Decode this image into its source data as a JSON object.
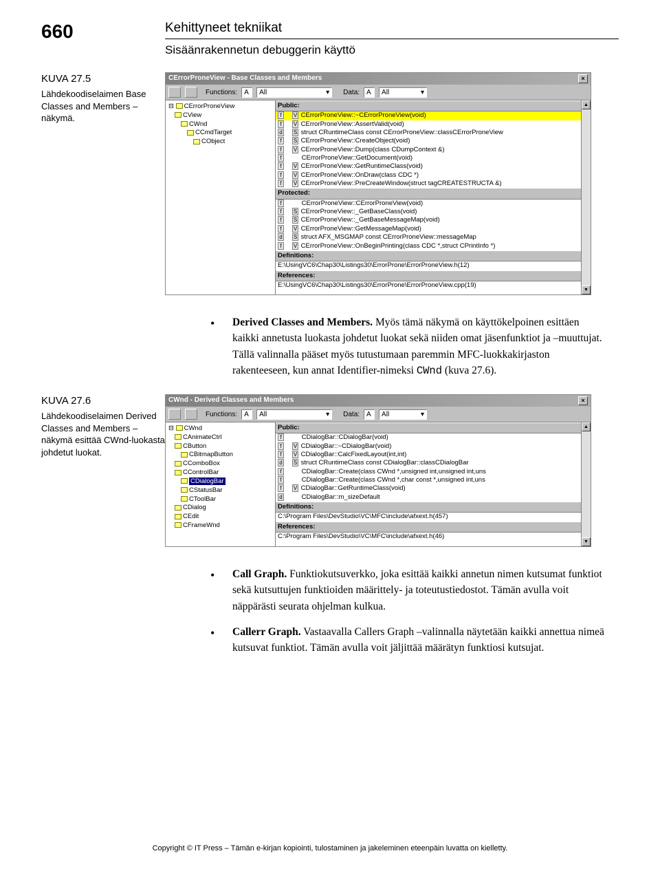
{
  "page_number": "660",
  "header": {
    "title1": "Kehittyneet tekniikat",
    "title2": "Sisäänrakennetun debuggerin käyttö"
  },
  "caption1": {
    "label": "KUVA 27.5",
    "text": "Lähdekoodiselaimen Base Classes and Members –näkymä."
  },
  "caption2": {
    "label": "KUVA 27.6",
    "text": "Lähdekoodiselaimen Derived Classes and Members –näkymä esittää CWnd-luokasta johdetut luokat."
  },
  "win1": {
    "title": "CErrorProneView - Base Classes and Members",
    "toolbar": {
      "functions_label": "Functions:",
      "functions_scope": "A",
      "functions_val": "All",
      "data_label": "Data:",
      "data_scope": "A",
      "data_val": "All"
    },
    "tree": [
      "CErrorProneView",
      " CView",
      "  CWnd",
      "   CCmdTarget",
      "    CObject"
    ],
    "sections": [
      {
        "h": "Public:",
        "rows": [
          {
            "b": "f V",
            "t": "CErrorProneView::~CErrorProneView(void)",
            "sel": true
          },
          {
            "b": "f V",
            "t": "CErrorProneView::AssertValid(void)"
          },
          {
            "b": "d S",
            "t": "struct CRuntimeClass const CErrorProneView::classCErrorProneView"
          },
          {
            "b": "f S",
            "t": "CErrorProneView::CreateObject(void)"
          },
          {
            "b": "f V",
            "t": "CErrorProneView::Dump(class CDumpContext &)"
          },
          {
            "b": "f  ",
            "t": "CErrorProneView::GetDocument(void)"
          },
          {
            "b": "f V",
            "t": "CErrorProneView::GetRuntimeClass(void)"
          },
          {
            "b": "f V",
            "t": "CErrorProneView::OnDraw(class CDC *)"
          },
          {
            "b": "f V",
            "t": "CErrorProneView::PreCreateWindow(struct tagCREATESTRUCTA &)"
          }
        ]
      },
      {
        "h": "Protected:",
        "rows": [
          {
            "b": "f  ",
            "t": "CErrorProneView::CErrorProneView(void)"
          },
          {
            "b": "f S",
            "t": "CErrorProneView::_GetBaseClass(void)"
          },
          {
            "b": "f S",
            "t": "CErrorProneView::_GetBaseMessageMap(void)"
          },
          {
            "b": "f V",
            "t": "CErrorProneView::GetMessageMap(void)"
          },
          {
            "b": "d S",
            "t": "struct AFX_MSGMAP const CErrorProneView::messageMap"
          },
          {
            "b": "f V",
            "t": "CErrorProneView::OnBeginPrinting(class CDC *,struct CPrintInfo *)"
          }
        ]
      },
      {
        "h": "Definitions:",
        "rows": [
          {
            "b": "",
            "t": "E:\\UsingVC6\\Chap30\\Listings30\\ErrorProne\\ErrorProneView.h(12)"
          }
        ]
      },
      {
        "h": "References:",
        "rows": [
          {
            "b": "",
            "t": "E:\\UsingVC6\\Chap30\\Listings30\\ErrorProne\\ErrorProneView.cpp(19)"
          }
        ]
      }
    ]
  },
  "win2": {
    "title": "CWnd - Derived Classes and Members",
    "toolbar": {
      "functions_label": "Functions:",
      "functions_scope": "A",
      "functions_val": "All",
      "data_label": "Data:",
      "data_scope": "A",
      "data_val": "All"
    },
    "tree": [
      "CWnd",
      " CAnimateCtrl",
      " CButton",
      "  CBitmapButton",
      " CComboBox",
      " CControlBar",
      "  CDialogBar",
      "  CStatusBar",
      "  CToolBar",
      " CDialog",
      " CEdit",
      " CFrameWnd"
    ],
    "tree_selected_index": 6,
    "sections": [
      {
        "h": "Public:",
        "rows": [
          {
            "b": "f  ",
            "t": "CDialogBar::CDialogBar(void)"
          },
          {
            "b": "f V",
            "t": "CDialogBar::~CDialogBar(void)"
          },
          {
            "b": "f V",
            "t": "CDialogBar::CalcFixedLayout(int,int)"
          },
          {
            "b": "d S",
            "t": "struct CRuntimeClass const CDialogBar::classCDialogBar"
          },
          {
            "b": "f  ",
            "t": "CDialogBar::Create(class CWnd *,unsigned int,unsigned int,uns"
          },
          {
            "b": "f  ",
            "t": "CDialogBar::Create(class CWnd *,char const *,unsigned int,uns"
          },
          {
            "b": "f V",
            "t": "CDialogBar::GetRuntimeClass(void)"
          },
          {
            "b": "d  ",
            "t": "CDialogBar::m_sizeDefault"
          }
        ]
      },
      {
        "h": "Definitions:",
        "rows": [
          {
            "b": "",
            "t": "C:\\Program Files\\DevStudio\\VC\\MFC\\include\\afxext.h(457)"
          }
        ]
      },
      {
        "h": "References:",
        "rows": [
          {
            "b": "",
            "t": "C:\\Program Files\\DevStudio\\VC\\MFC\\include\\afxext.h(46)"
          }
        ]
      }
    ]
  },
  "bullets": {
    "b1_bold": "Derived Classes and Members.",
    "b1_text": " Myös tämä näkymä on käyttökelpoinen esittäen kaikki annetusta luokasta johdetut luokat sekä niiden omat jäsenfunktiot ja –muuttujat. Tällä valinnalla pääset myös tutustumaan paremmin MFC-luokkakirjaston rakenteeseen, kun annat Identifier-nimeksi ",
    "b1_mono": "CWnd",
    "b1_tail": " (kuva 27.6).",
    "b2_bold": "Call Graph.",
    "b2_text": " Funktiokutsuverkko, joka esittää kaikki annetun nimen kutsumat funktiot sekä kutsuttujen funktioiden määrittely- ja toteutustiedostot. Tämän avulla voit näppärästi seurata ohjelman kulkua.",
    "b3_bold": "Callerr Graph.",
    "b3_text": " Vastaavalla Callers Graph –valinnalla näytetään kaikki annettua nimeä kutsuvat funktiot. Tämän avulla voit jäljittää määrätyn funktiosi kutsujat."
  },
  "footer": "Copyright © IT Press – Tämän e-kirjan kopiointi, tulostaminen ja jakeleminen eteenpäin luvatta on kielletty."
}
